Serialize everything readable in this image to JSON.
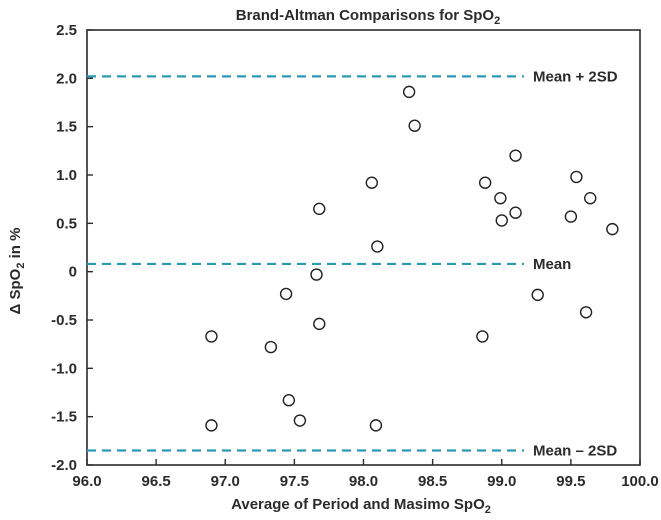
{
  "chart_data": {
    "type": "scatter",
    "title_main": "Brand-Altman Comparisons for SpO",
    "title_sub": "2",
    "xlabel_main": "Average of Period and Masimo SpO",
    "xlabel_sub": "2",
    "ylabel_prefix": "Δ SpO",
    "ylabel_sub": "2",
    "ylabel_suffix": " in %",
    "xlim": [
      96.0,
      100.0
    ],
    "ylim": [
      -2.0,
      2.5
    ],
    "x_ticks": [
      "96.0",
      "96.5",
      "97.0",
      "97.5",
      "98.0",
      "98.5",
      "99.0",
      "99.5",
      "100.0"
    ],
    "y_ticks": [
      "2.5",
      "2.0",
      "1.5",
      "1.0",
      "0.5",
      "0",
      "-0.5",
      "-1.0",
      "-1.5",
      "-2.0"
    ],
    "grid": false,
    "reference_lines": [
      {
        "label": "Mean + 2SD",
        "y": 2.02
      },
      {
        "label": "Mean",
        "y": 0.08
      },
      {
        "label": "Mean – 2SD",
        "y": -1.85
      }
    ],
    "line_color": "#2a9ab3",
    "points": [
      {
        "x": 96.9,
        "y": -0.67
      },
      {
        "x": 96.9,
        "y": -1.59
      },
      {
        "x": 97.33,
        "y": -0.78
      },
      {
        "x": 97.44,
        "y": -0.23
      },
      {
        "x": 97.46,
        "y": -1.33
      },
      {
        "x": 97.54,
        "y": -1.54
      },
      {
        "x": 97.66,
        "y": -0.03
      },
      {
        "x": 97.68,
        "y": 0.65
      },
      {
        "x": 97.68,
        "y": -0.54
      },
      {
        "x": 98.06,
        "y": 0.92
      },
      {
        "x": 98.09,
        "y": -1.59
      },
      {
        "x": 98.1,
        "y": 0.26
      },
      {
        "x": 98.33,
        "y": 1.86
      },
      {
        "x": 98.37,
        "y": 1.51
      },
      {
        "x": 98.86,
        "y": -0.67
      },
      {
        "x": 98.88,
        "y": 0.92
      },
      {
        "x": 98.99,
        "y": 0.76
      },
      {
        "x": 99.0,
        "y": 0.53
      },
      {
        "x": 99.1,
        "y": 1.2
      },
      {
        "x": 99.1,
        "y": 0.61
      },
      {
        "x": 99.26,
        "y": -0.24
      },
      {
        "x": 99.5,
        "y": 0.57
      },
      {
        "x": 99.54,
        "y": 0.98
      },
      {
        "x": 99.61,
        "y": -0.42
      },
      {
        "x": 99.64,
        "y": 0.76
      },
      {
        "x": 99.8,
        "y": 0.44
      }
    ]
  }
}
